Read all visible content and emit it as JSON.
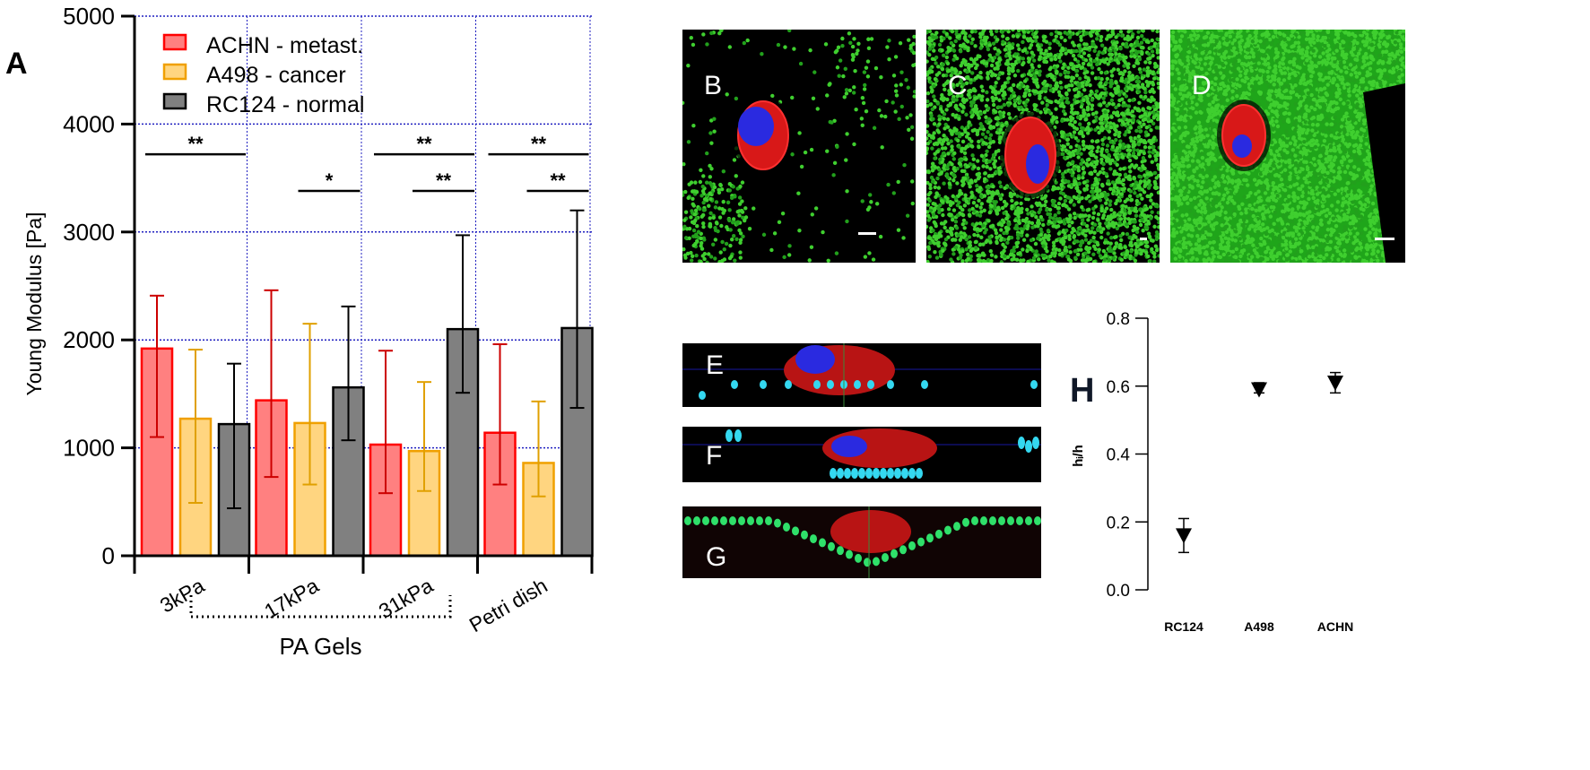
{
  "figure": {
    "panel_labels": {
      "A": "A",
      "B": "B",
      "C": "C",
      "D": "D",
      "E": "E",
      "F": "F",
      "G": "G",
      "H": "H"
    }
  },
  "chart_data": [
    {
      "panel": "A",
      "type": "bar",
      "title": "",
      "xlabel": "PA Gels",
      "ylabel": "Young Modulus [Pa]",
      "ylim": [
        0,
        5000
      ],
      "yticks": [
        0,
        1000,
        2000,
        3000,
        4000,
        5000
      ],
      "grid": true,
      "legend_position": "upper-left",
      "categories": [
        "3kPa",
        "17kPa",
        "31kPa",
        "Petri dish"
      ],
      "group_bracket": {
        "label": "PA Gels",
        "spans": [
          "3kPa",
          "17kPa",
          "31kPa"
        ]
      },
      "series": [
        {
          "name": "ACHN - metast.",
          "fill": "#ff8080",
          "edge": "#ff0000",
          "error_color": "#cc0000",
          "values": [
            1920,
            1440,
            1030,
            1140
          ],
          "err_low": [
            1100,
            730,
            580,
            660
          ],
          "err_high": [
            2410,
            2460,
            1900,
            1960
          ]
        },
        {
          "name": "A498 - cancer",
          "fill": "#ffd580",
          "edge": "#f0a000",
          "error_color": "#e0a000",
          "values": [
            1270,
            1230,
            970,
            860
          ],
          "err_low": [
            490,
            660,
            600,
            550
          ],
          "err_high": [
            1910,
            2150,
            1610,
            1430
          ]
        },
        {
          "name": "RC124 - normal",
          "fill": "#808080",
          "edge": "#000000",
          "error_color": "#000000",
          "values": [
            1220,
            1560,
            2100,
            2110
          ],
          "err_low": [
            440,
            1070,
            1510,
            1370
          ],
          "err_high": [
            1780,
            2310,
            2970,
            3200
          ]
        }
      ],
      "annotations": [
        {
          "category": "3kPa",
          "label": "**",
          "y": 3720,
          "from_series": 0,
          "to_series": 2
        },
        {
          "category": "17kPa",
          "label": "*",
          "y": 3380,
          "from_series": 1,
          "to_series": 2
        },
        {
          "category": "31kPa",
          "label": "**",
          "y": 3720,
          "from_series": 0,
          "to_series": 2
        },
        {
          "category": "31kPa",
          "label": "**",
          "y": 3380,
          "from_series": 1,
          "to_series": 2
        },
        {
          "category": "Petri dish",
          "label": "**",
          "y": 3720,
          "from_series": 0,
          "to_series": 2
        },
        {
          "category": "Petri dish",
          "label": "**",
          "y": 3380,
          "from_series": 1,
          "to_series": 2
        }
      ]
    },
    {
      "panel": "H",
      "type": "scatter",
      "title": "",
      "xlabel": "",
      "ylabel": "h_i/h",
      "ylim": [
        0.0,
        0.8
      ],
      "yticks": [
        "0.0",
        "0.2",
        "0.4",
        "0.6",
        "0.8"
      ],
      "grid": false,
      "marker": "down-triangle",
      "categories": [
        "RC124",
        "A498",
        "ACHN"
      ],
      "values": [
        0.16,
        0.59,
        0.61
      ],
      "err_low": [
        0.11,
        0.58,
        0.58
      ],
      "err_high": [
        0.21,
        0.61,
        0.64
      ]
    }
  ],
  "images": {
    "B": {
      "label": "B",
      "description": "fluorescence micrograph, sparse green beads, red/blue cell",
      "scale_bar": true
    },
    "C": {
      "label": "C",
      "description": "fluorescence micrograph, dense green beads, red/blue cell",
      "scale_bar": true
    },
    "D": {
      "label": "D",
      "description": "fluorescence micrograph, packed green beads, red/blue cell",
      "scale_bar": true
    },
    "E": {
      "label": "E",
      "description": "orthogonal section, cell on cyan beads"
    },
    "F": {
      "label": "F",
      "description": "orthogonal section, cell on cyan bead layer"
    },
    "G": {
      "label": "G",
      "description": "orthogonal section, cell embedded in green bead layer"
    }
  }
}
